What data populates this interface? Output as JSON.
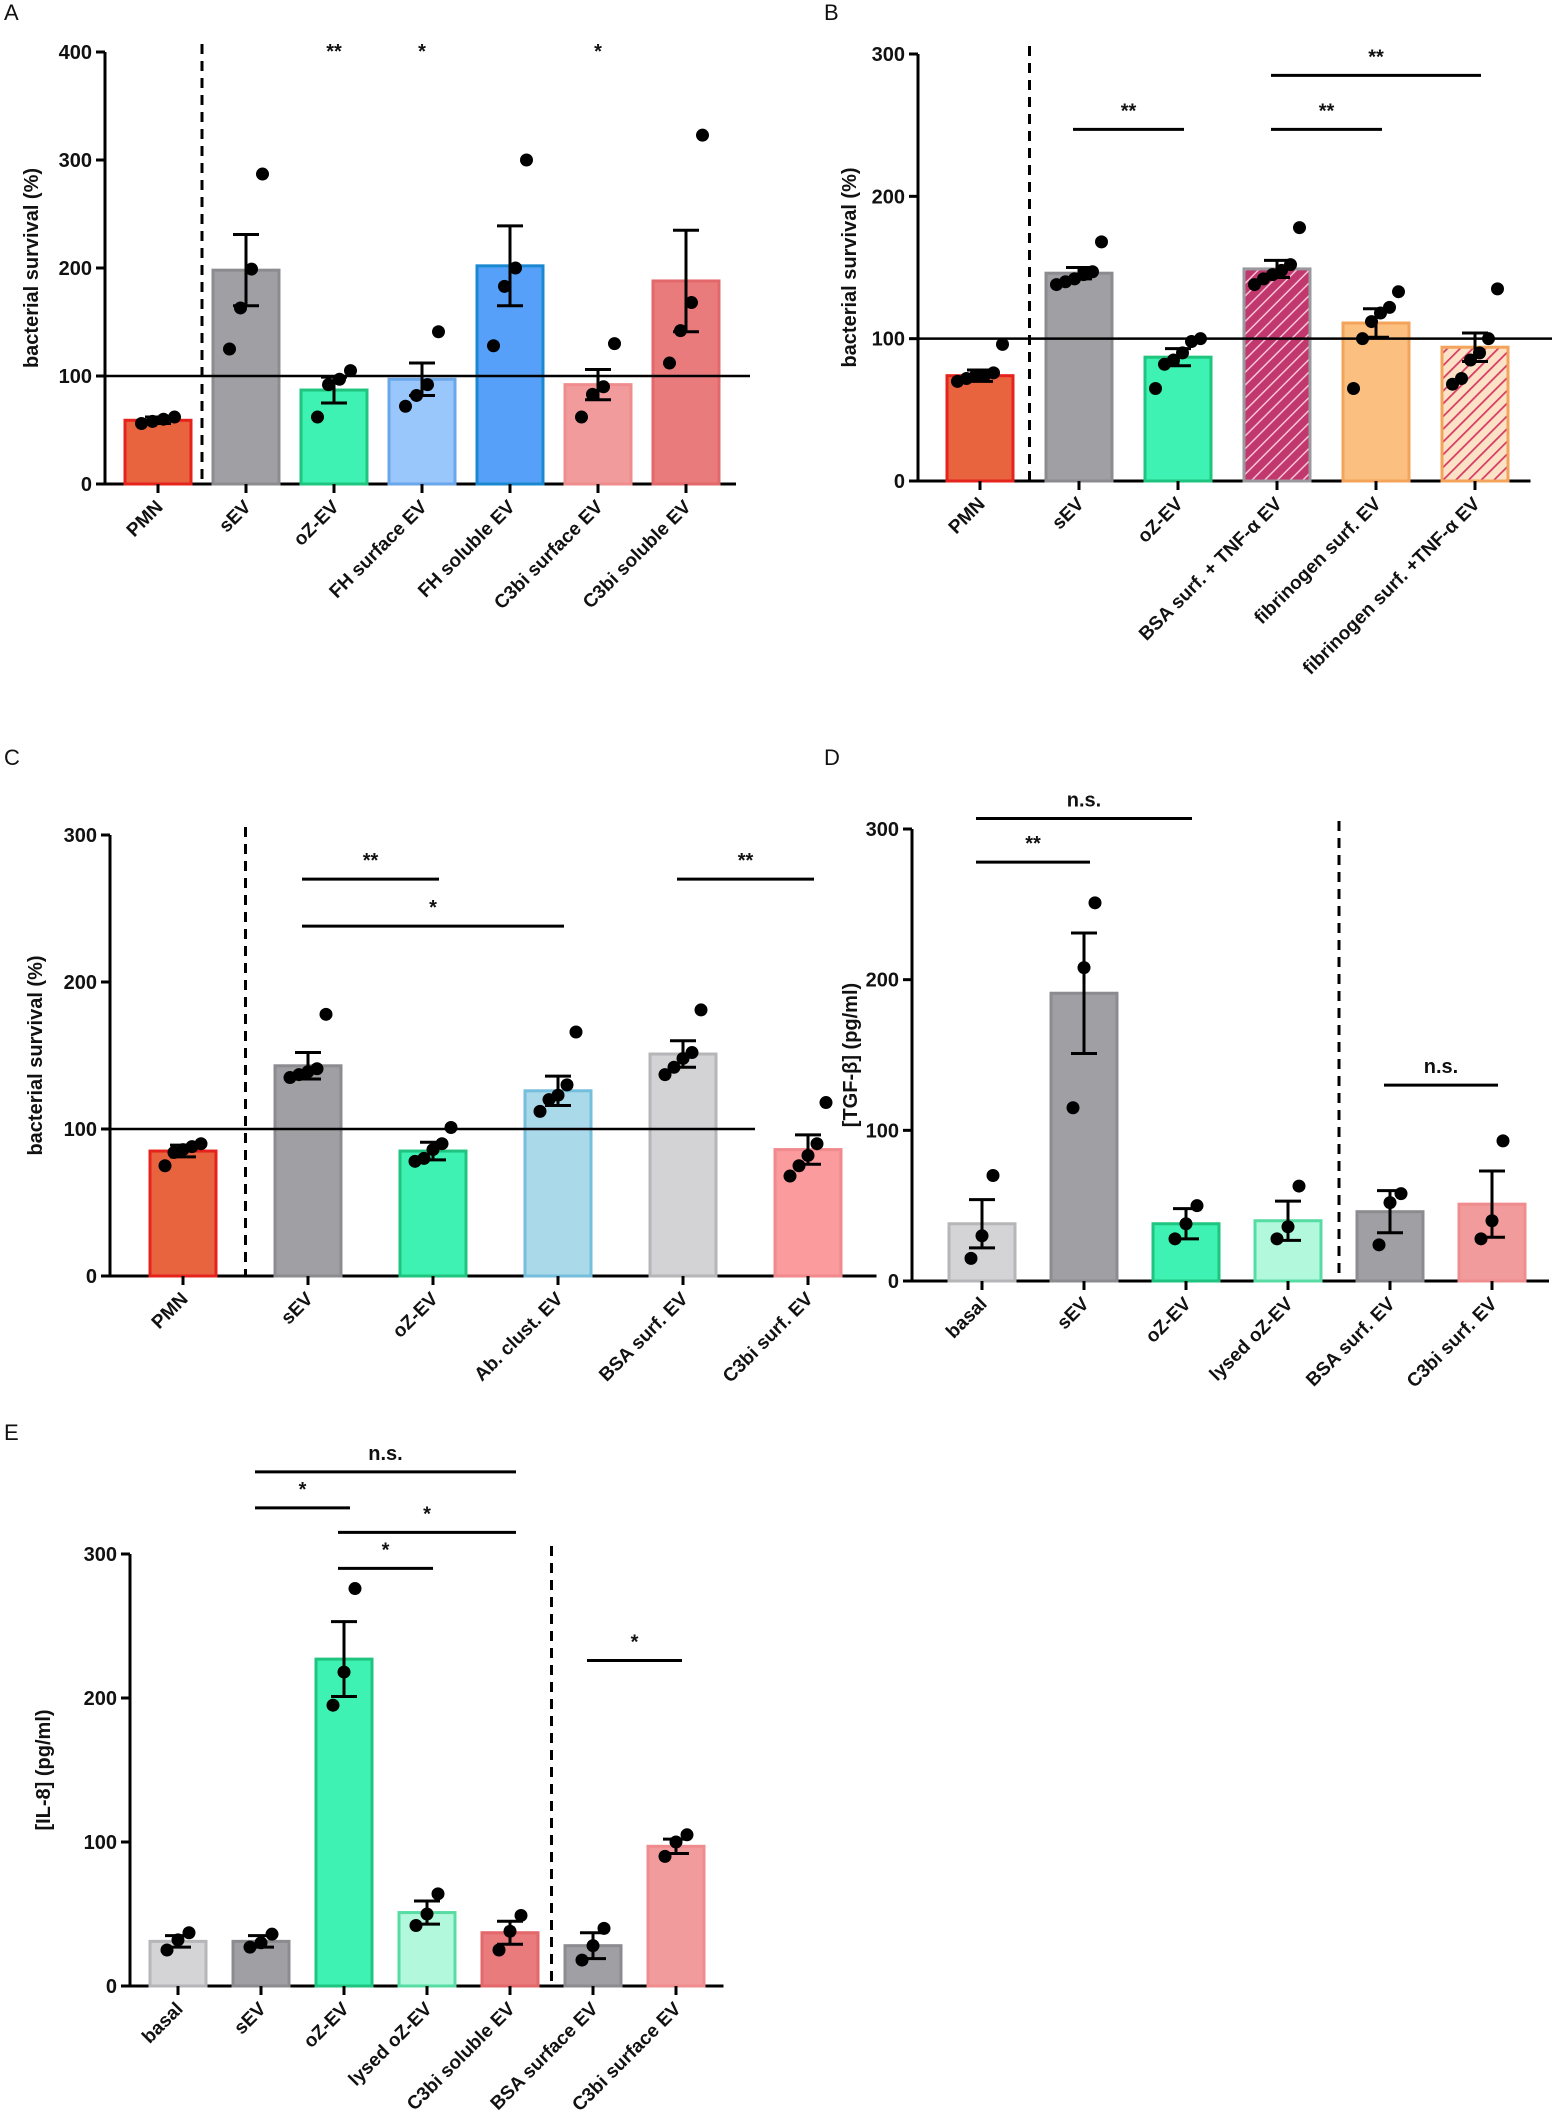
{
  "chart_data": [
    {
      "id": "A",
      "type": "bar",
      "letter": "A",
      "ylabel": "bacterial survival (%)",
      "ylim": [
        0,
        400
      ],
      "yticks": [
        0,
        100,
        200,
        300,
        400
      ],
      "yticklabels": [
        "0",
        "100",
        "200",
        "300",
        "400"
      ],
      "reference_line": 100,
      "divider_after": 0,
      "categories": [
        "PMN",
        "sEV",
        "oZ-EV",
        "FH surface EV",
        "FH soluble EV",
        "C3bi surface EV",
        "C3bi soluble EV"
      ],
      "values": [
        59,
        198,
        87,
        97,
        202,
        92,
        188
      ],
      "sem": [
        3,
        33,
        12,
        15,
        37,
        14,
        47
      ],
      "points": [
        [
          56,
          58,
          60,
          62
        ],
        [
          125,
          163,
          199,
          287
        ],
        [
          62,
          92,
          97,
          105
        ],
        [
          72,
          82,
          92,
          141
        ],
        [
          128,
          183,
          200,
          300
        ],
        [
          62,
          83,
          90,
          130
        ],
        [
          112,
          142,
          168,
          323
        ]
      ],
      "fills": [
        "#e8643f",
        "#a0a0a4",
        "#3df2b2",
        "#99c7fb",
        "#56a0fa",
        "#f29b9c",
        "#ea7b7d"
      ],
      "strokes": [
        "#e5231c",
        "#8c8c90",
        "#1fc47f",
        "#6aa6ea",
        "#1a88d0",
        "#ef8c8d",
        "#e2686b"
      ],
      "hatch": [
        false,
        false,
        false,
        false,
        false,
        false,
        false
      ],
      "sig_top": [
        {
          "index": 2,
          "label": "**"
        },
        {
          "index": 3,
          "label": "*"
        },
        {
          "index": 5,
          "label": "*"
        }
      ],
      "brackets": []
    },
    {
      "id": "B",
      "type": "bar",
      "letter": "B",
      "ylabel": "bacterial survival (%)",
      "ylim": [
        0,
        300
      ],
      "yticks": [
        0,
        100,
        200,
        300
      ],
      "yticklabels": [
        "0",
        "100",
        "200",
        "300"
      ],
      "reference_line": 100,
      "divider_after": 0,
      "categories": [
        "PMN",
        "sEV",
        "oZ-EV",
        "BSA surf. + TNF-α EV",
        "fibrinogen surf. EV",
        "fibrinogen surf. +TNF-α EV"
      ],
      "values": [
        74,
        146,
        87,
        149,
        111,
        94
      ],
      "sem": [
        4,
        4,
        6,
        6,
        10,
        10
      ],
      "points": [
        [
          70,
          72,
          74,
          74,
          76,
          96
        ],
        [
          138,
          140,
          142,
          145,
          147,
          168
        ],
        [
          65,
          82,
          85,
          90,
          98,
          100
        ],
        [
          138,
          142,
          145,
          148,
          152,
          178
        ],
        [
          65,
          100,
          112,
          118,
          122,
          133
        ],
        [
          68,
          72,
          85,
          90,
          100,
          135
        ]
      ],
      "fills": [
        "#e8643f",
        "#a0a0a4",
        "#3df2b2",
        "#c0386e",
        "#fbbf80",
        "#f4a77c"
      ],
      "strokes": [
        "#e5231c",
        "#8c8c90",
        "#1fc47f",
        "#9a9a9e",
        "#f3a45a",
        "#f3a45a"
      ],
      "hatch": [
        false,
        false,
        false,
        true,
        false,
        true
      ],
      "sig_top": [],
      "brackets": [
        {
          "from": 1,
          "to": 2,
          "value": 247,
          "label": "**"
        },
        {
          "from": 3,
          "to": 4,
          "value": 247,
          "label": "**"
        },
        {
          "from": 3,
          "to": 5,
          "value": 285,
          "label": "**"
        }
      ]
    },
    {
      "id": "C",
      "type": "bar",
      "letter": "C",
      "ylabel": "bacterial survival (%)",
      "ylim": [
        0,
        300
      ],
      "yticks": [
        0,
        100,
        200,
        300
      ],
      "yticklabels": [
        "0",
        "100",
        "200",
        "300"
      ],
      "reference_line": 100,
      "divider_after": 0,
      "categories": [
        "PMN",
        "sEV",
        "oZ-EV",
        "Ab. clust. EV",
        "BSA surf. EV",
        "C3bi surf. EV"
      ],
      "values": [
        85,
        143,
        85,
        126,
        151,
        86
      ],
      "sem": [
        4,
        9,
        6,
        10,
        9,
        10
      ],
      "points": [
        [
          75,
          84,
          86,
          88,
          90
        ],
        [
          135,
          137,
          139,
          141,
          178
        ],
        [
          78,
          80,
          86,
          90,
          101
        ],
        [
          112,
          120,
          123,
          130,
          166
        ],
        [
          137,
          142,
          148,
          152,
          181
        ],
        [
          68,
          75,
          82,
          90,
          118
        ]
      ],
      "fills": [
        "#e8643f",
        "#a0a0a4",
        "#3df2b2",
        "#aad9ea",
        "#d3d3d5",
        "#fc9b9e"
      ],
      "strokes": [
        "#e5231c",
        "#8c8c90",
        "#1fc47f",
        "#75bedc",
        "#b6b6b8",
        "#f08a8c"
      ],
      "hatch": [
        false,
        false,
        false,
        false,
        false,
        false
      ],
      "sig_top": [],
      "brackets": [
        {
          "from": 1,
          "to": 2,
          "value": 270,
          "label": "**"
        },
        {
          "from": 1,
          "to": 3,
          "value": 238,
          "label": "*"
        },
        {
          "from": 4,
          "to": 5,
          "value": 270,
          "label": "**"
        }
      ]
    },
    {
      "id": "D",
      "type": "bar",
      "letter": "D",
      "ylabel": "[TGF-β] (pg/ml)",
      "ylim": [
        0,
        300
      ],
      "yticks": [
        0,
        100,
        200,
        300
      ],
      "yticklabels": [
        "0",
        "100",
        "200",
        "300"
      ],
      "reference_line": null,
      "divider_after": 3,
      "categories": [
        "basal",
        "sEV",
        "oZ-EV",
        "lysed oZ-EV",
        "BSA surf. EV",
        "C3bi surf. EV"
      ],
      "values": [
        38,
        191,
        38,
        40,
        46,
        51
      ],
      "sem": [
        16,
        40,
        10,
        13,
        14,
        22
      ],
      "points": [
        [
          15,
          30,
          70
        ],
        [
          115,
          208,
          251
        ],
        [
          28,
          38,
          50
        ],
        [
          28,
          36,
          63
        ],
        [
          24,
          52,
          58
        ],
        [
          28,
          40,
          93
        ]
      ],
      "fills": [
        "#d4d4d6",
        "#a0a0a4",
        "#3df2b2",
        "#b2f8dc",
        "#a0a0a4",
        "#f29b9c"
      ],
      "strokes": [
        "#b6b6b8",
        "#8c8c90",
        "#1fc47f",
        "#57dca3",
        "#8c8c90",
        "#ef8c8d"
      ],
      "hatch": [
        false,
        false,
        false,
        false,
        false,
        false
      ],
      "sig_top": [],
      "brackets": [
        {
          "from": 0,
          "to": 1,
          "value": 278,
          "label": "**"
        },
        {
          "from": 0,
          "to": 2,
          "value": 307,
          "label": "n.s."
        },
        {
          "from": 4,
          "to": 5,
          "value": 130,
          "label": "n.s."
        }
      ]
    },
    {
      "id": "E",
      "type": "bar",
      "letter": "E",
      "ylabel": "[IL-8] (pg/ml)",
      "ylim": [
        0,
        300
      ],
      "yticks": [
        0,
        100,
        200,
        300
      ],
      "yticklabels": [
        "0",
        "100",
        "200",
        "300"
      ],
      "reference_line": null,
      "divider_after": 4,
      "categories": [
        "basal",
        "sEV",
        "oZ-EV",
        "lysed oZ-EV",
        "C3bi soluble EV",
        "BSA surface EV",
        "C3bi surface EV"
      ],
      "values": [
        31,
        31,
        227,
        51,
        37,
        28,
        97
      ],
      "sem": [
        4,
        4,
        26,
        8,
        8,
        9,
        5
      ],
      "points": [
        [
          25,
          32,
          37
        ],
        [
          27,
          30,
          36
        ],
        [
          195,
          218,
          276
        ],
        [
          42,
          50,
          64
        ],
        [
          25,
          38,
          49
        ],
        [
          18,
          28,
          40
        ],
        [
          90,
          100,
          105
        ]
      ],
      "fills": [
        "#d4d4d6",
        "#a0a0a4",
        "#3df2b2",
        "#b2f8dc",
        "#ea7b7d",
        "#a0a0a4",
        "#f29b9c"
      ],
      "strokes": [
        "#b6b6b8",
        "#8c8c90",
        "#1fc47f",
        "#57dca3",
        "#e2686b",
        "#8c8c90",
        "#ef8c8d"
      ],
      "hatch": [
        false,
        false,
        false,
        false,
        false,
        false,
        false
      ],
      "sig_top": [],
      "brackets": [
        {
          "from": 1,
          "to": 2,
          "value": 332,
          "label": "*"
        },
        {
          "from": 1,
          "to": 4,
          "value": 357,
          "label": "n.s."
        },
        {
          "from": 2,
          "to": 4,
          "value": 315,
          "label": "*"
        },
        {
          "from": 2,
          "to": 3,
          "value": 290,
          "label": "*"
        },
        {
          "from": 5,
          "to": 6,
          "value": 226,
          "label": "*"
        }
      ]
    }
  ]
}
